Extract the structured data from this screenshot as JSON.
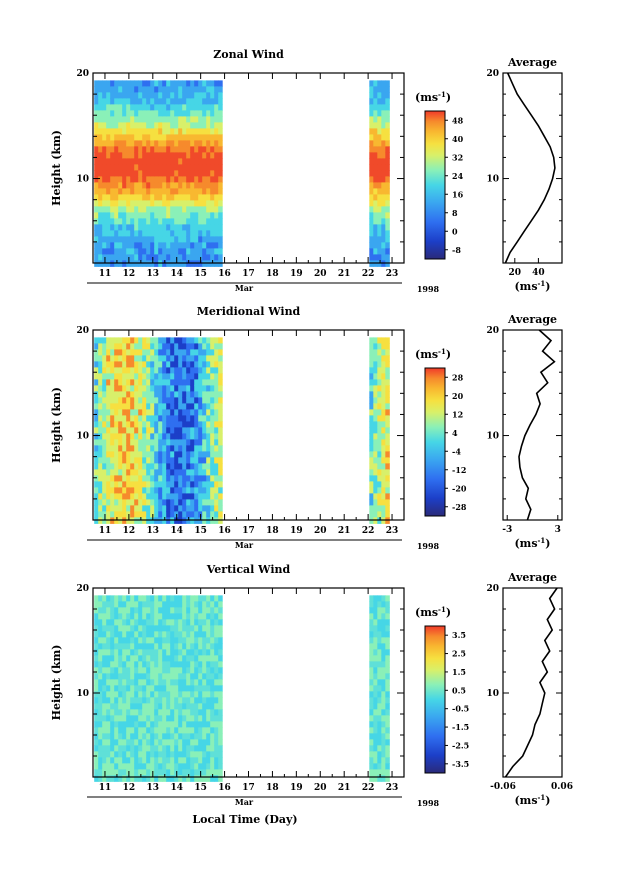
{
  "chart_data": [
    {
      "type": "heatmap",
      "title": "Zonal Wind",
      "ylabel": "Height (km)",
      "xlabel": "Mar",
      "year_label": "1998",
      "ylim": [
        2,
        20
      ],
      "xlim": [
        10.5,
        23.5
      ],
      "y_ticks": [
        "20",
        "10"
      ],
      "x_ticks": [
        "11",
        "12",
        "13",
        "14",
        "15",
        "16",
        "17",
        "18",
        "19",
        "20",
        "21",
        "22",
        "23"
      ],
      "data_segments": [
        [
          10.55,
          15.75
        ],
        [
          22.05,
          22.85
        ]
      ],
      "colorbar": {
        "unit_label": "(ms",
        "unit_exp": "-1",
        "ticks": [
          "48",
          "40",
          "32",
          "24",
          "16",
          "8",
          "0",
          "-8"
        ],
        "range": [
          -12,
          52
        ]
      },
      "profile": {
        "title": "Average",
        "xlim": [
          10,
          60
        ],
        "ylim": [
          2,
          20
        ],
        "x_ticks": [
          "20",
          "40"
        ],
        "y_ticks": [
          "20",
          "10"
        ],
        "unit_label": "(ms",
        "unit_exp": "-1",
        "points": [
          [
            12,
            2
          ],
          [
            16,
            3
          ],
          [
            22,
            4
          ],
          [
            28,
            5
          ],
          [
            34,
            6
          ],
          [
            40,
            7
          ],
          [
            45,
            8
          ],
          [
            49,
            9
          ],
          [
            52,
            10
          ],
          [
            54,
            11
          ],
          [
            53,
            12
          ],
          [
            50,
            13
          ],
          [
            45,
            14
          ],
          [
            40,
            15
          ],
          [
            34,
            16
          ],
          [
            28,
            17
          ],
          [
            22,
            18
          ],
          [
            18,
            19
          ],
          [
            14,
            20
          ]
        ]
      }
    },
    {
      "type": "heatmap",
      "title": "Meridional Wind",
      "ylabel": "Height (km)",
      "xlabel": "Mar",
      "year_label": "1998",
      "ylim": [
        2,
        20
      ],
      "xlim": [
        10.5,
        23.5
      ],
      "y_ticks": [
        "20",
        "10"
      ],
      "x_ticks": [
        "11",
        "12",
        "13",
        "14",
        "15",
        "16",
        "17",
        "18",
        "19",
        "20",
        "21",
        "22",
        "23"
      ],
      "data_segments": [
        [
          10.55,
          15.75
        ],
        [
          22.05,
          22.85
        ]
      ],
      "colorbar": {
        "unit_label": "(ms",
        "unit_exp": "-1",
        "ticks": [
          "28",
          "20",
          "12",
          "4",
          "-4",
          "-12",
          "-20",
          "-28"
        ],
        "range": [
          -32,
          32
        ]
      },
      "profile": {
        "title": "Average",
        "xlim": [
          -3.5,
          3.5
        ],
        "ylim": [
          2,
          20
        ],
        "x_ticks": [
          "-3",
          "3"
        ],
        "y_ticks": [
          "20",
          "10"
        ],
        "unit_label": "(ms",
        "unit_exp": "-1",
        "points": [
          [
            -0.6,
            2
          ],
          [
            -0.2,
            3
          ],
          [
            -0.8,
            4
          ],
          [
            -0.5,
            5
          ],
          [
            -1.2,
            6
          ],
          [
            -1.5,
            7
          ],
          [
            -1.6,
            8
          ],
          [
            -1.3,
            9
          ],
          [
            -0.9,
            10
          ],
          [
            -0.3,
            11
          ],
          [
            0.4,
            12
          ],
          [
            0.9,
            13
          ],
          [
            0.5,
            14
          ],
          [
            1.8,
            15
          ],
          [
            1.0,
            16
          ],
          [
            2.6,
            17
          ],
          [
            1.2,
            18
          ],
          [
            2.2,
            19
          ],
          [
            0.8,
            20
          ]
        ]
      }
    },
    {
      "type": "heatmap",
      "title": "Vertical Wind",
      "ylabel": "Height (km)",
      "xlabel": "Mar",
      "year_label": "1998",
      "ylim": [
        2,
        20
      ],
      "xlim": [
        10.5,
        23.5
      ],
      "y_ticks": [
        "20",
        "10"
      ],
      "x_ticks": [
        "11",
        "12",
        "13",
        "14",
        "15",
        "16",
        "17",
        "18",
        "19",
        "20",
        "21",
        "22",
        "23"
      ],
      "data_segments": [
        [
          10.55,
          15.75
        ],
        [
          22.05,
          22.85
        ]
      ],
      "colorbar": {
        "unit_label": "(ms",
        "unit_exp": "-1",
        "ticks": [
          "3.5",
          "2.5",
          "1.5",
          "0.5",
          "-0.5",
          "-1.5",
          "-2.5",
          "-3.5"
        ],
        "range": [
          -4,
          4
        ]
      },
      "profile": {
        "title": "Average",
        "xlim": [
          -0.06,
          0.06
        ],
        "ylim": [
          2,
          20
        ],
        "x_ticks": [
          "-0.06",
          "0.06"
        ],
        "y_ticks": [
          "20",
          "10"
        ],
        "unit_label": "(ms",
        "unit_exp": "-1",
        "points": [
          [
            -0.055,
            2
          ],
          [
            -0.04,
            3
          ],
          [
            -0.02,
            4
          ],
          [
            -0.01,
            5
          ],
          [
            0.0,
            6
          ],
          [
            0.005,
            7
          ],
          [
            0.015,
            8
          ],
          [
            0.02,
            9
          ],
          [
            0.025,
            10
          ],
          [
            0.015,
            11
          ],
          [
            0.03,
            12
          ],
          [
            0.02,
            13
          ],
          [
            0.035,
            14
          ],
          [
            0.025,
            15
          ],
          [
            0.04,
            16
          ],
          [
            0.03,
            17
          ],
          [
            0.045,
            18
          ],
          [
            0.035,
            19
          ],
          [
            0.05,
            20
          ]
        ]
      }
    }
  ],
  "footer": {
    "xaxis_title": "Local Time (Day)"
  },
  "colors": {
    "scale": [
      "#2a2a7a",
      "#1c3fc8",
      "#2f6ff0",
      "#3aa6f0",
      "#46d6e6",
      "#8af0b8",
      "#d8f06a",
      "#f6e040",
      "#f8b830",
      "#f68a2c",
      "#f04a2a",
      "#f03a2a"
    ]
  }
}
